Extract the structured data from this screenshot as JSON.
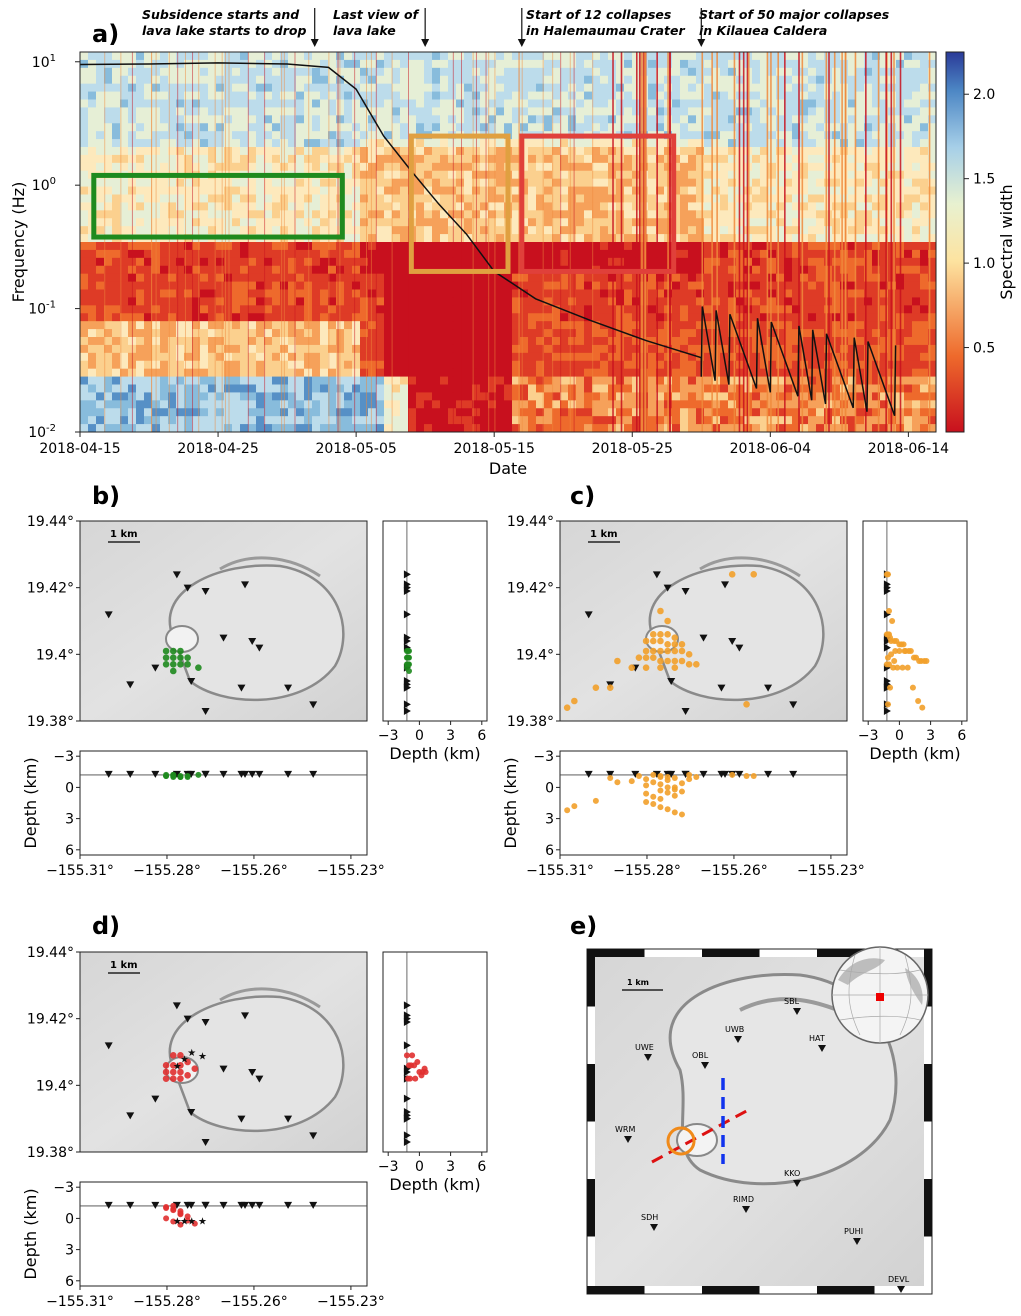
{
  "panel_labels": {
    "a": "a)",
    "b": "b)",
    "c": "c)",
    "d": "d)",
    "e": "e)"
  },
  "annotations": [
    {
      "line1": "Subsidence starts and",
      "line2": "lava lake starts to drop"
    },
    {
      "line1": "Last view of",
      "line2": "lava lake"
    },
    {
      "line1": "Start of 12 collapses",
      "line2": "in Halemaumau Crater"
    },
    {
      "line1": "Start of 50 major collapses",
      "line2": "in Kilauea Caldera"
    }
  ],
  "colors": {
    "green": "#1e8a1e",
    "orange_box": "#e0a040",
    "red_box": "#e0403a",
    "orange_dot": "#f2a02a",
    "red_dot": "#e03030",
    "gray_dot": "#9a9a9a",
    "station": "#111111",
    "section_red": "#dd1111",
    "section_blue": "#1133ee"
  },
  "colorbar": {
    "label": "Spectral width",
    "ticks": [
      "0.5",
      "1.0",
      "1.5",
      "2.0"
    ],
    "range": [
      0.0,
      2.25
    ]
  },
  "chart_data": [
    {
      "type": "heatmap",
      "panel": "a)",
      "xlabel": "Date",
      "ylabel": "Frequency (Hz)",
      "x_ticks": [
        "2018-04-15",
        "2018-04-25",
        "2018-05-05",
        "2018-05-15",
        "2018-05-25",
        "2018-06-04",
        "2018-06-14"
      ],
      "y_ticks": [
        "10",
        "10",
        "10",
        "10"
      ],
      "y_tick_exps": [
        "1",
        "0",
        "-1",
        "-2"
      ],
      "ylim": [
        0.01,
        12
      ],
      "yscale": "log",
      "overlay_line": {
        "x": [
          "2018-04-15",
          "2018-04-20",
          "2018-04-25",
          "2018-04-30",
          "2018-05-03",
          "2018-05-05",
          "2018-05-07",
          "2018-05-09",
          "2018-05-11",
          "2018-05-13",
          "2018-05-15",
          "2018-05-18",
          "2018-05-22",
          "2018-05-26",
          "2018-05-30"
        ],
        "y": [
          9.5,
          9.6,
          9.8,
          9.6,
          9.0,
          6.0,
          2.5,
          1.3,
          0.7,
          0.4,
          0.2,
          0.12,
          0.08,
          0.055,
          0.04
        ]
      },
      "boxes": [
        {
          "color": "green",
          "x": [
            "2018-04-16",
            "2018-05-04"
          ],
          "y": [
            0.38,
            1.2
          ]
        },
        {
          "color": "orange_box",
          "x": [
            "2018-05-09",
            "2018-05-16"
          ],
          "y": [
            0.2,
            2.5
          ]
        },
        {
          "color": "red_box",
          "x": [
            "2018-05-17",
            "2018-05-28"
          ],
          "y": [
            0.2,
            2.5
          ]
        }
      ],
      "event_dates": [
        "2018-05-02",
        "2018-05-10",
        "2018-05-17",
        "2018-05-30"
      ]
    },
    {
      "type": "scatter",
      "panel": "b)",
      "color": "green",
      "lat_ticks": [
        "19.44°",
        "19.42°",
        "19.4°",
        "19.38°"
      ],
      "lon_ticks": [
        "−155.31°",
        "−155.28°",
        "−155.26°",
        "−155.23°"
      ],
      "depth_ticks": [
        "−3",
        "0",
        "3",
        "6"
      ],
      "depth_label": "Depth (km)",
      "scale": "1 km",
      "events": [
        [
          -155.286,
          19.401
        ],
        [
          -155.284,
          19.401
        ],
        [
          -155.282,
          19.401
        ],
        [
          -155.286,
          19.399
        ],
        [
          -155.284,
          19.399
        ],
        [
          -155.282,
          19.399
        ],
        [
          -155.28,
          19.399
        ],
        [
          -155.286,
          19.397
        ],
        [
          -155.284,
          19.397
        ],
        [
          -155.282,
          19.397
        ],
        [
          -155.28,
          19.397
        ],
        [
          -155.277,
          19.396
        ],
        [
          -155.284,
          19.395
        ]
      ],
      "depths": [
        -1.1,
        -1.2,
        -1.0,
        -1.1,
        -1.2,
        -1.1,
        -1.0,
        -1.2,
        -1.1,
        -1.0,
        -1.1,
        -1.2,
        -1.0
      ]
    },
    {
      "type": "scatter",
      "panel": "c)",
      "color": "orange_dot",
      "lat_ticks": [
        "19.44°",
        "19.42°",
        "19.4°",
        "19.38°"
      ],
      "lon_ticks": [
        "−155.31°",
        "−155.28°",
        "−155.26°",
        "−155.23°"
      ],
      "depth_ticks": [
        "−3",
        "0",
        "3",
        "6"
      ],
      "depth_label": "Depth (km)",
      "scale": "1 km",
      "events": [
        [
          -155.284,
          19.406
        ],
        [
          -155.282,
          19.406
        ],
        [
          -155.28,
          19.406
        ],
        [
          -155.278,
          19.405
        ],
        [
          -155.286,
          19.404
        ],
        [
          -155.284,
          19.404
        ],
        [
          -155.282,
          19.404
        ],
        [
          -155.28,
          19.403
        ],
        [
          -155.278,
          19.403
        ],
        [
          -155.276,
          19.403
        ],
        [
          -155.286,
          19.401
        ],
        [
          -155.284,
          19.401
        ],
        [
          -155.282,
          19.401
        ],
        [
          -155.28,
          19.401
        ],
        [
          -155.278,
          19.401
        ],
        [
          -155.276,
          19.401
        ],
        [
          -155.274,
          19.4
        ],
        [
          -155.288,
          19.399
        ],
        [
          -155.286,
          19.399
        ],
        [
          -155.284,
          19.399
        ],
        [
          -155.282,
          19.398
        ],
        [
          -155.28,
          19.398
        ],
        [
          -155.278,
          19.398
        ],
        [
          -155.276,
          19.398
        ],
        [
          -155.274,
          19.397
        ],
        [
          -155.272,
          19.397
        ],
        [
          -155.29,
          19.396
        ],
        [
          -155.286,
          19.396
        ],
        [
          -155.282,
          19.396
        ],
        [
          -155.278,
          19.396
        ],
        [
          -155.3,
          19.39
        ],
        [
          -155.306,
          19.386
        ],
        [
          -155.308,
          19.384
        ],
        [
          -155.258,
          19.385
        ],
        [
          -155.262,
          19.424
        ],
        [
          -155.256,
          19.424
        ],
        [
          -155.282,
          19.413
        ],
        [
          -155.28,
          19.41
        ],
        [
          -155.294,
          19.398
        ],
        [
          -155.296,
          19.39
        ]
      ],
      "depths": [
        -1.2,
        -1.1,
        -1.0,
        -0.9,
        -0.8,
        -0.5,
        -0.3,
        0.0,
        0.2,
        0.4,
        0.6,
        0.9,
        1.1,
        0.5,
        0.0,
        -0.4,
        -0.8,
        -1.1,
        1.4,
        1.6,
        1.9,
        2.1,
        2.4,
        2.6,
        -1.2,
        -1.0,
        -0.6,
        -0.2,
        0.3,
        0.8,
        1.3,
        1.8,
        2.2,
        -1.1,
        -1.2,
        -1.1,
        -1.0,
        -0.7,
        -0.5,
        -0.9
      ]
    },
    {
      "type": "scatter",
      "panel": "d)",
      "color": "red_dot",
      "lat_ticks": [
        "19.44°",
        "19.42°",
        "19.4°",
        "19.38°"
      ],
      "lon_ticks": [
        "−155.31°",
        "−155.28°",
        "−155.26°",
        "−155.23°"
      ],
      "depth_ticks": [
        "−3",
        "0",
        "3",
        "6"
      ],
      "depth_label": "Depth (km)",
      "scale": "1 km",
      "events": [
        [
          -155.286,
          19.406
        ],
        [
          -155.284,
          19.406
        ],
        [
          -155.282,
          19.406
        ],
        [
          -155.28,
          19.407
        ],
        [
          -155.286,
          19.404
        ],
        [
          -155.284,
          19.404
        ],
        [
          -155.282,
          19.404
        ],
        [
          -155.286,
          19.402
        ],
        [
          -155.284,
          19.402
        ],
        [
          -155.282,
          19.402
        ],
        [
          -155.28,
          19.403
        ],
        [
          -155.278,
          19.405
        ],
        [
          -155.284,
          19.409
        ],
        [
          -155.282,
          19.409
        ]
      ],
      "depths": [
        -1.0,
        -0.8,
        -0.5,
        -0.2,
        0.0,
        0.3,
        0.6,
        -1.1,
        -0.9,
        -0.4,
        0.2,
        0.5,
        -1.2,
        -0.7
      ],
      "stars": [
        [
          -155.281,
          19.408
        ],
        [
          -155.279,
          19.41
        ],
        [
          -155.276,
          19.409
        ],
        [
          -155.283,
          19.406
        ]
      ]
    }
  ],
  "map_e": {
    "scale": "1 km",
    "stations": [
      {
        "name": "SBL"
      },
      {
        "name": "UWB"
      },
      {
        "name": "UWE"
      },
      {
        "name": "HAT"
      },
      {
        "name": "OBL"
      },
      {
        "name": "WRM"
      },
      {
        "name": "KKO"
      },
      {
        "name": "RIMD"
      },
      {
        "name": "SDH"
      },
      {
        "name": "PUHI"
      },
      {
        "name": "DEVL"
      }
    ]
  },
  "station_lonlat": [
    [
      -155.283,
      19.424
    ],
    [
      -155.28,
      19.42
    ],
    [
      -155.275,
      19.419
    ],
    [
      -155.264,
      19.421
    ],
    [
      -155.302,
      19.412
    ],
    [
      -155.262,
      19.404
    ],
    [
      -155.289,
      19.396
    ],
    [
      -155.296,
      19.391
    ],
    [
      -155.279,
      19.392
    ],
    [
      -155.27,
      19.405
    ],
    [
      -155.26,
      19.402
    ],
    [
      -155.265,
      19.39
    ],
    [
      -155.252,
      19.39
    ],
    [
      -155.245,
      19.385
    ],
    [
      -155.275,
      19.383
    ]
  ]
}
